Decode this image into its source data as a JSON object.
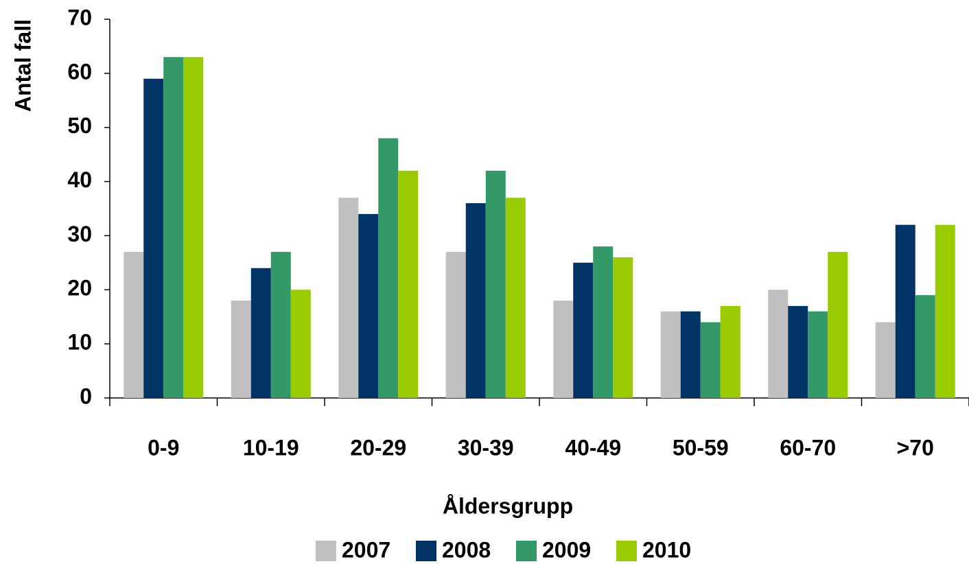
{
  "chart_data": {
    "type": "bar",
    "x_label": "Åldersgrupp",
    "y_label": "Antal fall",
    "categories": [
      "0-9",
      "10-19",
      "20-29",
      "30-39",
      "40-49",
      "50-59",
      "60-70",
      ">70"
    ],
    "series": [
      {
        "name": "2007",
        "color": "#c0c0c0",
        "values": [
          27,
          18,
          37,
          27,
          18,
          16,
          20,
          14
        ]
      },
      {
        "name": "2008",
        "color": "#003366",
        "values": [
          59,
          24,
          34,
          36,
          25,
          16,
          17,
          32
        ]
      },
      {
        "name": "2009",
        "color": "#339966",
        "values": [
          63,
          27,
          48,
          42,
          28,
          14,
          16,
          19
        ]
      },
      {
        "name": "2010",
        "color": "#99cc00",
        "values": [
          63,
          20,
          42,
          37,
          26,
          17,
          27,
          32
        ]
      }
    ],
    "ylim": [
      0,
      70
    ],
    "yticks": [
      0,
      10,
      20,
      30,
      40,
      50,
      60,
      70
    ],
    "grid": false,
    "legend": "bottom"
  }
}
